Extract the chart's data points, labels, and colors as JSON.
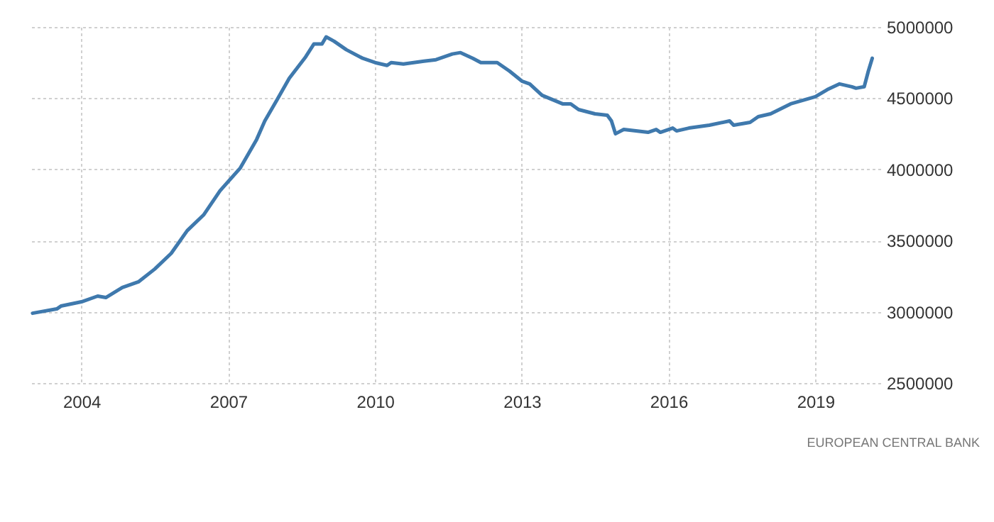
{
  "chart_data": {
    "type": "line",
    "annotations": [
      "EUROPEAN CENTRAL BANK"
    ],
    "x": [
      "2003-01",
      "2003-07",
      "2003-08",
      "2004-01",
      "2004-05",
      "2004-07",
      "2004-11",
      "2005-03",
      "2005-07",
      "2005-11",
      "2006-03",
      "2006-07",
      "2006-11",
      "2007-04",
      "2007-08",
      "2007-10",
      "2008-01",
      "2008-04",
      "2008-08",
      "2008-10",
      "2008-12",
      "2009-01",
      "2009-03",
      "2009-06",
      "2009-10",
      "2010-01",
      "2010-04",
      "2010-05",
      "2010-08",
      "2011-01",
      "2011-04",
      "2011-08",
      "2011-10",
      "2012-01",
      "2012-03",
      "2012-07",
      "2012-10",
      "2013-01",
      "2013-03",
      "2013-06",
      "2013-11",
      "2014-01",
      "2014-03",
      "2014-07",
      "2014-10",
      "2014-11",
      "2014-12",
      "2015-02",
      "2015-08",
      "2015-10",
      "2015-11",
      "2016-02",
      "2016-03",
      "2016-06",
      "2016-11",
      "2017-04",
      "2017-05",
      "2017-09",
      "2017-11",
      "2018-02",
      "2018-07",
      "2019-01",
      "2019-04",
      "2019-07",
      "2019-10",
      "2019-11",
      "2020-01",
      "2020-02",
      "2020-03"
    ],
    "series": [
      {
        "color": "#3f79ad",
        "values": [
          2990000,
          3020000,
          3040000,
          3070000,
          3110000,
          3100000,
          3170000,
          3210000,
          3300000,
          3410000,
          3570000,
          3680000,
          3850000,
          4010000,
          4210000,
          4340000,
          4490000,
          4640000,
          4790000,
          4880000,
          4880000,
          4930000,
          4900000,
          4840000,
          4780000,
          4750000,
          4730000,
          4750000,
          4740000,
          4760000,
          4770000,
          4810000,
          4820000,
          4780000,
          4750000,
          4750000,
          4690000,
          4620000,
          4600000,
          4520000,
          4460000,
          4460000,
          4420000,
          4390000,
          4380000,
          4340000,
          4250000,
          4280000,
          4260000,
          4280000,
          4260000,
          4290000,
          4270000,
          4290000,
          4310000,
          4340000,
          4310000,
          4330000,
          4370000,
          4390000,
          4460000,
          4510000,
          4560000,
          4600000,
          4580000,
          4570000,
          4580000,
          4690000,
          4780000
        ]
      }
    ],
    "xlim": [
      "2002-12",
      "2020-05"
    ],
    "xticks": [
      "2004",
      "2007",
      "2010",
      "2013",
      "2016",
      "2019"
    ],
    "ylim": [
      2500000,
      5000000
    ],
    "yticks": [
      2500000,
      3000000,
      3500000,
      4000000,
      4500000,
      5000000
    ],
    "grid": true,
    "marker": "none",
    "line_style": "solid"
  }
}
